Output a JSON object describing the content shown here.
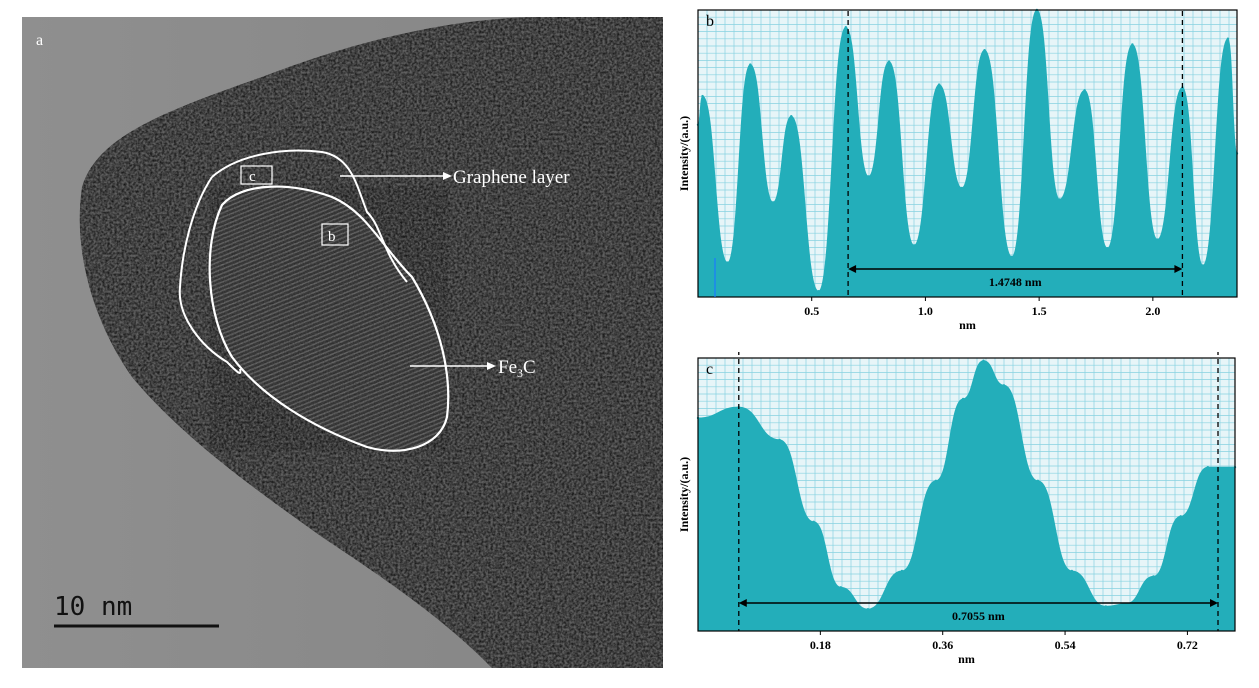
{
  "micrograph": {
    "panel_label": "a",
    "region_labels": [
      "c",
      "b"
    ],
    "annotations": [
      "Graphene layer",
      "Fe",
      "3",
      "C"
    ],
    "scale_bar": "10 nm"
  },
  "colors": {
    "fill": "#23aeba",
    "grid": "#87d2e0",
    "background": "#e7f5f8",
    "accent": "#1a7aff"
  },
  "chart_data": [
    {
      "type": "area",
      "panel_label": "b",
      "ylabel": "Intensity/(a.u.)",
      "xlabel": "nm",
      "xlim": [
        0,
        2.37
      ],
      "ylim": [
        0,
        1
      ],
      "x_ticks": [
        "0.5",
        "1.0",
        "1.5",
        "2.0"
      ],
      "x_tick_values": [
        0.5,
        1.0,
        1.5,
        2.0
      ],
      "peaks_x": [
        0.02,
        0.23,
        0.41,
        0.65,
        0.84,
        1.06,
        1.26,
        1.49,
        1.7,
        1.91,
        2.13,
        2.33
      ],
      "peaks_y": [
        0.7,
        0.81,
        0.63,
        0.94,
        0.82,
        0.74,
        0.86,
        1.0,
        0.72,
        0.88,
        0.73,
        0.9
      ],
      "valleys_x": [
        0.0,
        0.13,
        0.33,
        0.53,
        0.75,
        0.95,
        1.16,
        1.38,
        1.59,
        1.8,
        2.02,
        2.22,
        2.37
      ],
      "valleys_y": [
        0.6,
        0.12,
        0.33,
        0.02,
        0.42,
        0.18,
        0.38,
        0.14,
        0.34,
        0.17,
        0.2,
        0.11,
        0.5
      ],
      "measure": {
        "from": 0.66,
        "to": 2.13,
        "label": "1.4748 nm"
      }
    },
    {
      "type": "area",
      "panel_label": "c",
      "ylabel": "Intensity/(a.u.)",
      "xlabel": "nm",
      "xlim": [
        0,
        0.79
      ],
      "ylim": [
        0,
        1
      ],
      "x_ticks": [
        "0.18",
        "0.36",
        "0.54",
        "0.72"
      ],
      "x_tick_values": [
        0.18,
        0.36,
        0.54,
        0.72
      ],
      "points_x": [
        0.0,
        0.06,
        0.12,
        0.17,
        0.21,
        0.25,
        0.3,
        0.35,
        0.39,
        0.42,
        0.45,
        0.5,
        0.55,
        0.6,
        0.63,
        0.67,
        0.71,
        0.75,
        0.79
      ],
      "points_y": [
        0.78,
        0.82,
        0.7,
        0.4,
        0.16,
        0.08,
        0.22,
        0.55,
        0.85,
        0.99,
        0.9,
        0.55,
        0.22,
        0.09,
        0.1,
        0.2,
        0.42,
        0.6,
        0.6
      ],
      "measure": {
        "from": 0.06,
        "to": 0.765,
        "label": "0.7055 nm"
      }
    }
  ]
}
